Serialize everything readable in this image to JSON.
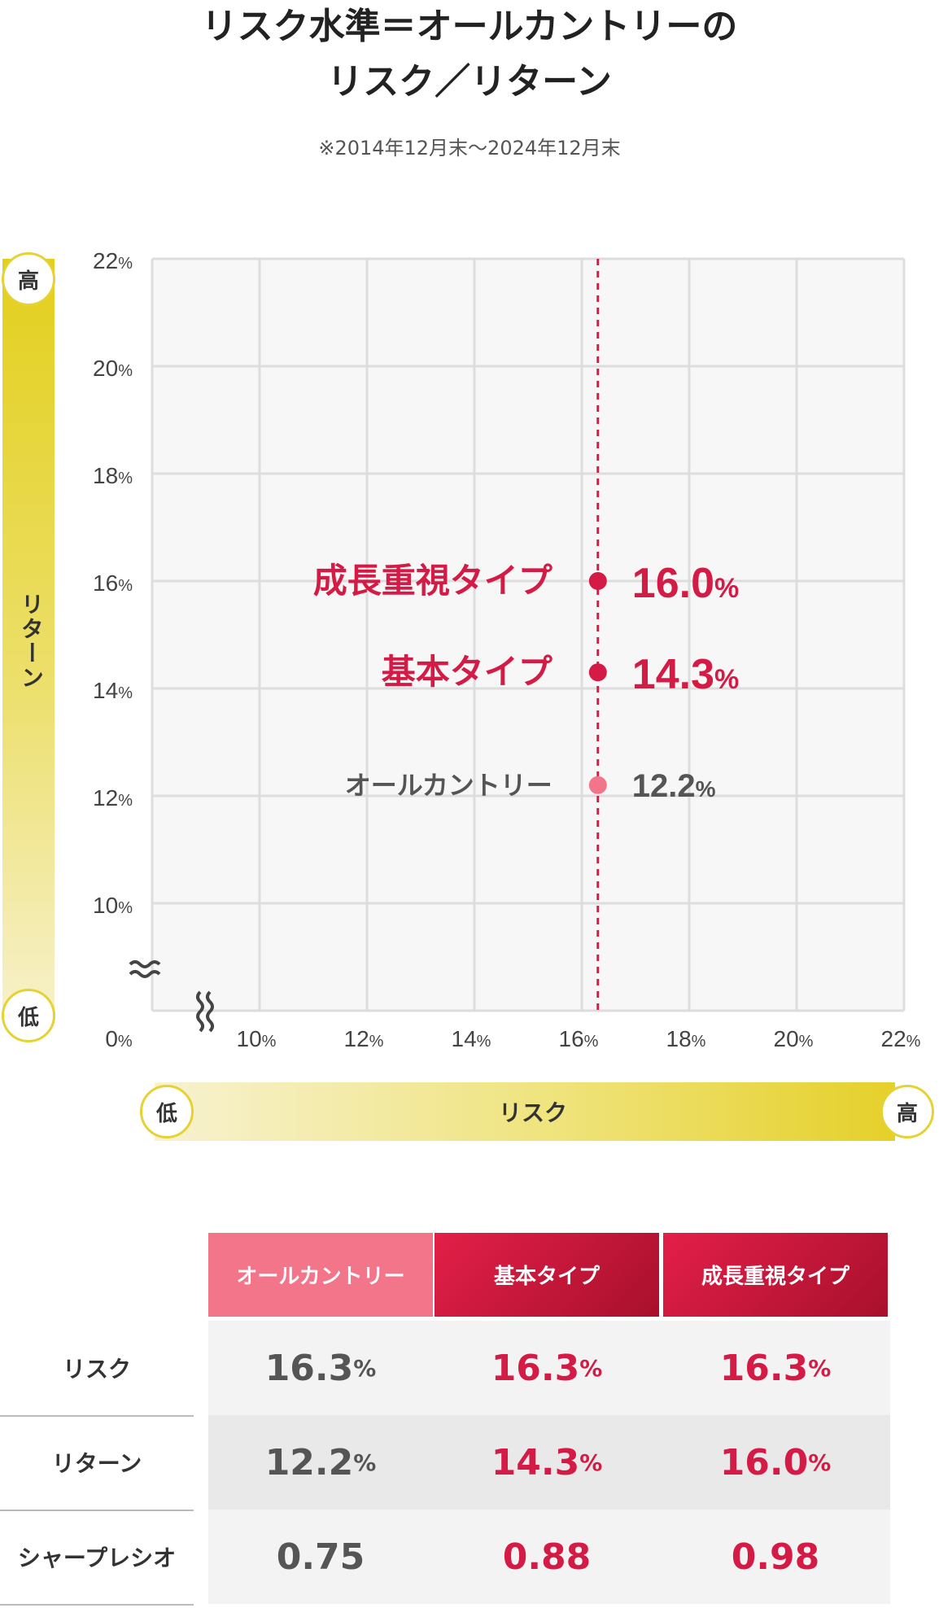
{
  "title": {
    "line1": "リスク水準＝オールカントリーの",
    "line2": "リスク／リターン"
  },
  "subtitle": "※2014年12月末〜2024年12月末",
  "y_axis": {
    "label": "リターン",
    "high": "高",
    "low": "低"
  },
  "x_axis": {
    "label": "リスク",
    "high": "高",
    "low": "低"
  },
  "chart_data": {
    "type": "scatter",
    "xlabel": "リスク",
    "ylabel": "リターン",
    "x_ticks": [
      "10%",
      "12%",
      "14%",
      "16%",
      "18%",
      "20%",
      "22%"
    ],
    "y_ticks": [
      "10%",
      "12%",
      "14%",
      "16%",
      "18%",
      "20%",
      "22%"
    ],
    "origin_label": "0%",
    "axis_break": true,
    "xlim": [
      8,
      22
    ],
    "ylim": [
      8,
      22
    ],
    "grid": true,
    "reference_line_x": 16.3,
    "points": [
      {
        "name": "成長重視タイプ",
        "x": 16.3,
        "y": 16.0,
        "label": "16.0",
        "color": "#d41b45",
        "emphasis": true
      },
      {
        "name": "基本タイプ",
        "x": 16.3,
        "y": 14.3,
        "label": "14.3",
        "color": "#d41b45",
        "emphasis": true
      },
      {
        "name": "オールカントリー",
        "x": 16.3,
        "y": 12.2,
        "label": "12.2",
        "color": "#f3758a",
        "emphasis": false
      }
    ]
  },
  "table": {
    "columns": [
      "オールカントリー",
      "基本タイプ",
      "成長重視タイプ"
    ],
    "rows": [
      {
        "label": "リスク",
        "values": [
          "16.3",
          "16.3",
          "16.3"
        ],
        "pct": [
          "%",
          "%",
          "%"
        ]
      },
      {
        "label": "リターン",
        "values": [
          "12.2",
          "14.3",
          "16.0"
        ],
        "pct": [
          "%",
          "%",
          "%"
        ]
      },
      {
        "label": "シャープレシオ",
        "values": [
          "0.75",
          "0.88",
          "0.98"
        ],
        "pct": [
          "",
          "",
          ""
        ]
      }
    ]
  },
  "colors": {
    "accent_red": "#d41b45",
    "accent_pink": "#f3758a",
    "axis_yellow": "#e3cf1c",
    "grid": "#dddddd",
    "plot_bg": "#f7f7f7"
  }
}
